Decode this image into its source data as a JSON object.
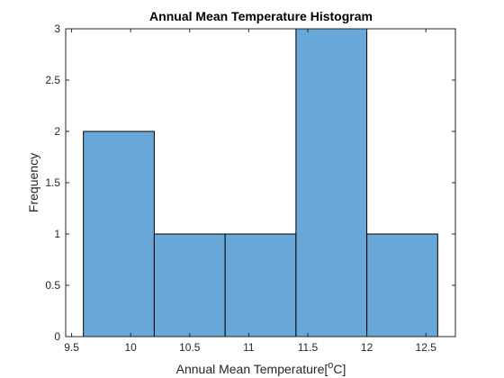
{
  "chart_data": {
    "type": "bar",
    "title": "Annual Mean Temperature Histogram",
    "xlabel": "Annual Mean Temperature[",
    "xlabel_sup": "o",
    "xlabel_suffix": "C]",
    "ylabel": "Frequency",
    "bin_edges": [
      9.6,
      10.2,
      10.8,
      11.4,
      12.0,
      12.6
    ],
    "values": [
      2,
      1,
      1,
      3,
      1
    ],
    "xlim": [
      9.45,
      12.75
    ],
    "ylim": [
      0,
      3
    ],
    "xticks": [
      9.5,
      10,
      10.5,
      11,
      11.5,
      12,
      12.5
    ],
    "xtick_labels": [
      "9.5",
      "10",
      "10.5",
      "11",
      "11.5",
      "12",
      "12.5"
    ],
    "yticks": [
      0,
      0.5,
      1,
      1.5,
      2,
      2.5,
      3
    ],
    "ytick_labels": [
      "0",
      "0.5",
      "1",
      "1.5",
      "2",
      "2.5",
      "3"
    ],
    "bar_color": "#67a8d8",
    "grid": false
  }
}
